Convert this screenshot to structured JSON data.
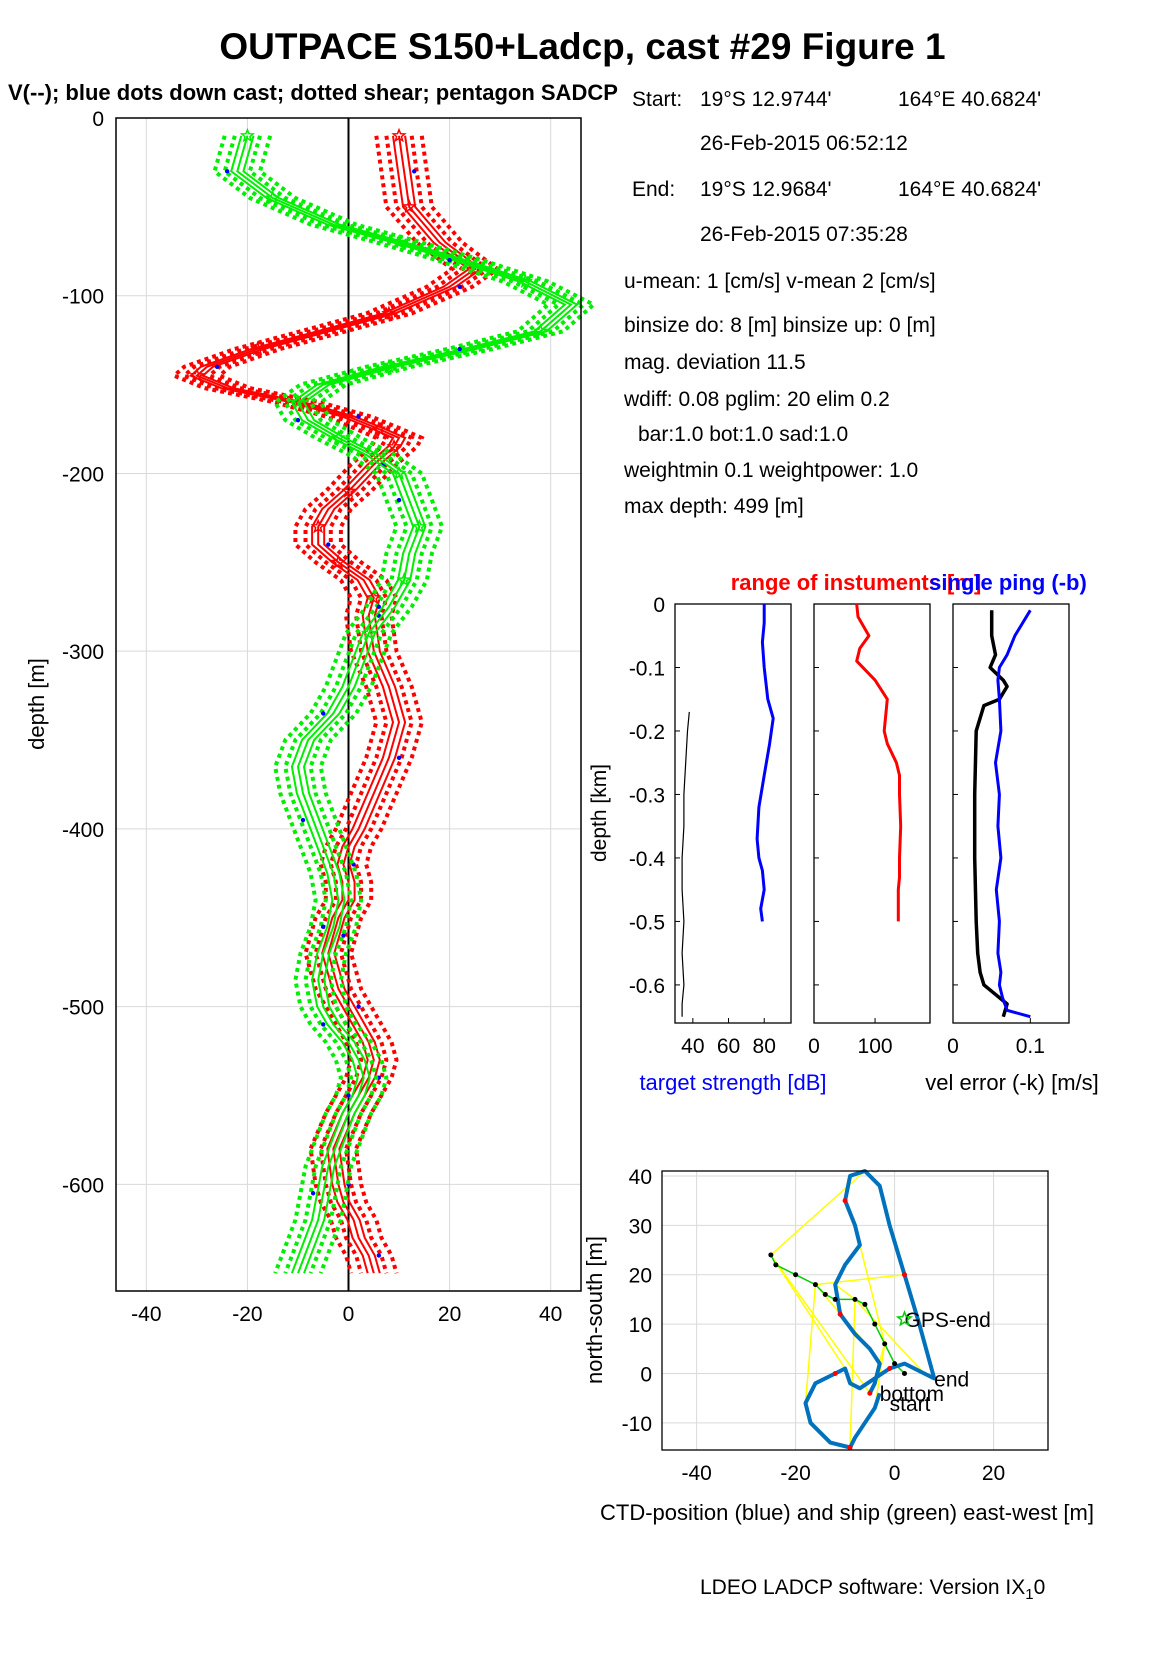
{
  "title": "OUTPACE S150+Ladcp, cast #29  Figure 1",
  "subtitle": "V(--); blue dots down cast; dotted shear; pentagon SADCP",
  "info": {
    "start_label": "Start:",
    "start_lat": "19°S 12.9744'",
    "start_lon": "164°E 40.6824'",
    "start_time": "26-Feb-2015 06:52:12",
    "end_label": "End:",
    "end_lat": "19°S 12.9684'",
    "end_lon": "164°E 40.6824'",
    "end_time": "26-Feb-2015 07:35:28",
    "means": "u-mean:   1 [cm/s]    v-mean   2 [cm/s]",
    "binsize": "binsize do: 8 [m]  binsize up:  0 [m]",
    "magdev": "mag. deviation 11.5",
    "wdiff": "wdiff: 0.08  pglim: 20  elim 0.2",
    "bar": "bar:1.0 bot:1.0 sad:1.0",
    "weight": "weightmin 0.1  weightpower: 1.0",
    "maxdepth": "max depth: 499 [m]"
  },
  "footer": {
    "text": "LDEO LADCP software: Version IX",
    "sub": "1",
    "suffix": "0"
  },
  "colors": {
    "u": "#ff0000",
    "v": "#00ee00",
    "dots": "#0000ff",
    "ctd": "#0072bd",
    "ship": "#00cc00",
    "links": "#ffff00",
    "grid": "#d9d9d9",
    "zero_line": "#000000"
  },
  "chart_data": [
    {
      "id": "velocity_profile",
      "type": "line",
      "ylabel": "depth [m]",
      "xlabel": "",
      "xlim": [
        -46,
        46
      ],
      "ylim": [
        -660,
        0
      ],
      "xticks": [
        -40,
        -20,
        0,
        20,
        40
      ],
      "yticks": [
        0,
        -100,
        -200,
        -300,
        -400,
        -500,
        -600
      ],
      "grid": true,
      "series": [
        {
          "component": "u",
          "color": "#ff0000",
          "x": [
            10,
            11,
            12,
            18,
            25,
            20,
            8,
            -5,
            -18,
            -28,
            -30,
            -24,
            -10,
            0,
            6,
            10,
            9,
            5,
            0,
            -4,
            -6,
            -6,
            -2,
            3,
            5,
            4,
            5,
            8,
            10,
            8,
            5,
            2,
            0,
            -1,
            0,
            0,
            -2,
            -3,
            -4,
            -3,
            -2,
            0,
            2,
            4,
            5,
            4,
            2,
            0,
            -3,
            -2,
            -1,
            1,
            2,
            4,
            5
          ],
          "y": [
            -10,
            -30,
            -50,
            -70,
            -85,
            -95,
            -110,
            -120,
            -130,
            -140,
            -145,
            -152,
            -160,
            -168,
            -175,
            -180,
            -185,
            -195,
            -210,
            -220,
            -230,
            -240,
            -250,
            -260,
            -270,
            -280,
            -300,
            -320,
            -340,
            -360,
            -380,
            -400,
            -410,
            -420,
            -430,
            -440,
            -450,
            -460,
            -470,
            -480,
            -490,
            -500,
            -510,
            -520,
            -530,
            -540,
            -550,
            -560,
            -580,
            -600,
            -610,
            -620,
            -630,
            -640,
            -650
          ]
        },
        {
          "component": "v",
          "color": "#00ee00",
          "x": [
            -20,
            -22,
            -15,
            -3,
            10,
            22,
            35,
            44,
            38,
            24,
            8,
            -5,
            -10,
            -8,
            -2,
            5,
            10,
            12,
            14,
            12,
            11,
            8,
            4,
            2,
            0,
            -3,
            -8,
            -10,
            -9,
            -7,
            -5,
            -3,
            -2,
            -3,
            -5,
            -6,
            -5,
            -3,
            0,
            2,
            3,
            2,
            0,
            -2,
            -4,
            -5,
            -6,
            -8,
            -10
          ],
          "y": [
            -10,
            -30,
            -45,
            -60,
            -70,
            -80,
            -92,
            -105,
            -120,
            -130,
            -140,
            -150,
            -160,
            -170,
            -180,
            -190,
            -200,
            -215,
            -230,
            -245,
            -260,
            -275,
            -290,
            -305,
            -320,
            -335,
            -350,
            -365,
            -380,
            -395,
            -410,
            -425,
            -440,
            -455,
            -470,
            -485,
            -500,
            -510,
            -520,
            -530,
            -540,
            -550,
            -560,
            -575,
            -590,
            -605,
            -620,
            -635,
            -650
          ]
        }
      ]
    },
    {
      "id": "target_strength",
      "type": "line",
      "title": "range of instuments [m]",
      "ylabel": "depth [km]",
      "xlabel": "target strength [dB]",
      "xlim": [
        30,
        95
      ],
      "ylim": [
        -0.66,
        0
      ],
      "xticks": [
        40,
        60,
        80
      ],
      "yticks": [
        0,
        -0.1,
        -0.2,
        -0.3,
        -0.4,
        -0.5,
        -0.6
      ],
      "series": [
        {
          "color": "#000000",
          "x": [
            38,
            37,
            36,
            35,
            35,
            34,
            34,
            35,
            34,
            35,
            34,
            34
          ],
          "y": [
            -0.17,
            -0.2,
            -0.25,
            -0.3,
            -0.35,
            -0.4,
            -0.45,
            -0.5,
            -0.55,
            -0.6,
            -0.63,
            -0.65
          ]
        },
        {
          "color": "#0000ff",
          "x": [
            80,
            80,
            79,
            80,
            82,
            85,
            83,
            80,
            77,
            76,
            77,
            79,
            80,
            78,
            79
          ],
          "y": [
            0,
            -0.03,
            -0.06,
            -0.1,
            -0.15,
            -0.18,
            -0.22,
            -0.27,
            -0.32,
            -0.37,
            -0.4,
            -0.42,
            -0.45,
            -0.48,
            -0.5
          ]
        }
      ]
    },
    {
      "id": "range",
      "type": "line",
      "xlim": [
        0,
        190
      ],
      "ylim": [
        -0.66,
        0
      ],
      "xticks": [
        0,
        100
      ],
      "series": [
        {
          "color": "#ff0000",
          "x": [
            70,
            72,
            90,
            75,
            70,
            100,
            120,
            115,
            120,
            135,
            140,
            140,
            142,
            140,
            140,
            138,
            138
          ],
          "y": [
            0,
            -0.02,
            -0.05,
            -0.07,
            -0.09,
            -0.12,
            -0.15,
            -0.2,
            -0.22,
            -0.25,
            -0.27,
            -0.3,
            -0.35,
            -0.4,
            -0.43,
            -0.45,
            -0.5
          ]
        }
      ]
    },
    {
      "id": "vel_error",
      "type": "line",
      "title": "single ping (-b)",
      "xlabel": "vel error (-k) [m/s]",
      "xlim": [
        0,
        0.15
      ],
      "ylim": [
        -0.66,
        0
      ],
      "xticks": [
        0,
        0.1
      ],
      "series": [
        {
          "color": "#000000",
          "x": [
            0.05,
            0.05,
            0.055,
            0.048,
            0.065,
            0.07,
            0.06,
            0.04,
            0.03,
            0.028,
            0.028,
            0.03,
            0.032,
            0.035,
            0.04,
            0.05,
            0.06,
            0.07,
            0.065
          ],
          "y": [
            -0.01,
            -0.05,
            -0.08,
            -0.1,
            -0.12,
            -0.13,
            -0.15,
            -0.16,
            -0.2,
            -0.3,
            -0.4,
            -0.5,
            -0.55,
            -0.58,
            -0.6,
            -0.61,
            -0.62,
            -0.63,
            -0.65
          ]
        },
        {
          "color": "#0000ff",
          "x": [
            0.1,
            0.08,
            0.07,
            0.06,
            0.058,
            0.06,
            0.062,
            0.055,
            0.06,
            0.058,
            0.062,
            0.056,
            0.06,
            0.058,
            0.062,
            0.06,
            0.064,
            0.07,
            0.1
          ],
          "y": [
            -0.01,
            -0.05,
            -0.08,
            -0.1,
            -0.12,
            -0.15,
            -0.2,
            -0.25,
            -0.3,
            -0.35,
            -0.4,
            -0.45,
            -0.5,
            -0.55,
            -0.58,
            -0.6,
            -0.62,
            -0.64,
            -0.65
          ]
        }
      ]
    },
    {
      "id": "position",
      "type": "line",
      "xlabel": "CTD-position (blue) and ship (green) east-west [m]",
      "ylabel": "north-south [m]",
      "xlim": [
        -47,
        31
      ],
      "ylim": [
        -15.5,
        41
      ],
      "xticks": [
        -40,
        -20,
        0,
        20
      ],
      "yticks": [
        40,
        30,
        20,
        10,
        0,
        -10
      ],
      "labels": {
        "gps_end": "GPS-end",
        "end": "end",
        "bottom": "bottom",
        "start": "start"
      },
      "label_points": {
        "gps_end": [
          2,
          11
        ],
        "end": [
          8,
          -1
        ],
        "bottom": [
          -3,
          -4
        ],
        "start": [
          -1,
          -6
        ]
      },
      "series": [
        {
          "name": "CTD-position",
          "color": "#0072bd",
          "x": [
            -5,
            -4,
            -3,
            -5,
            -8,
            -11,
            -12,
            -10,
            -7,
            -8,
            -10,
            -9,
            -6,
            -3,
            -1,
            2,
            5,
            8,
            6,
            2,
            -1,
            -4,
            -7,
            -9,
            -10,
            -12,
            -16,
            -18,
            -17,
            -13,
            -9,
            -8,
            -6,
            -4,
            -3
          ],
          "y": [
            -4,
            -2,
            2,
            5,
            8,
            12,
            18,
            22,
            26,
            30,
            35,
            40,
            41,
            38,
            30,
            20,
            10,
            -1,
            0,
            2,
            1,
            -1,
            -3,
            -2,
            1,
            0,
            -2,
            -6,
            -10,
            -14,
            -15,
            -13,
            -10,
            -7,
            -4
          ]
        },
        {
          "name": "ship",
          "color": "#00cc00",
          "x": [
            -25,
            -24,
            -20,
            -16,
            -14,
            -12,
            -8,
            -6,
            -4,
            -2,
            0,
            2
          ],
          "y": [
            24,
            22,
            20,
            18,
            16,
            15,
            15,
            14,
            10,
            6,
            2,
            0
          ]
        }
      ]
    }
  ]
}
